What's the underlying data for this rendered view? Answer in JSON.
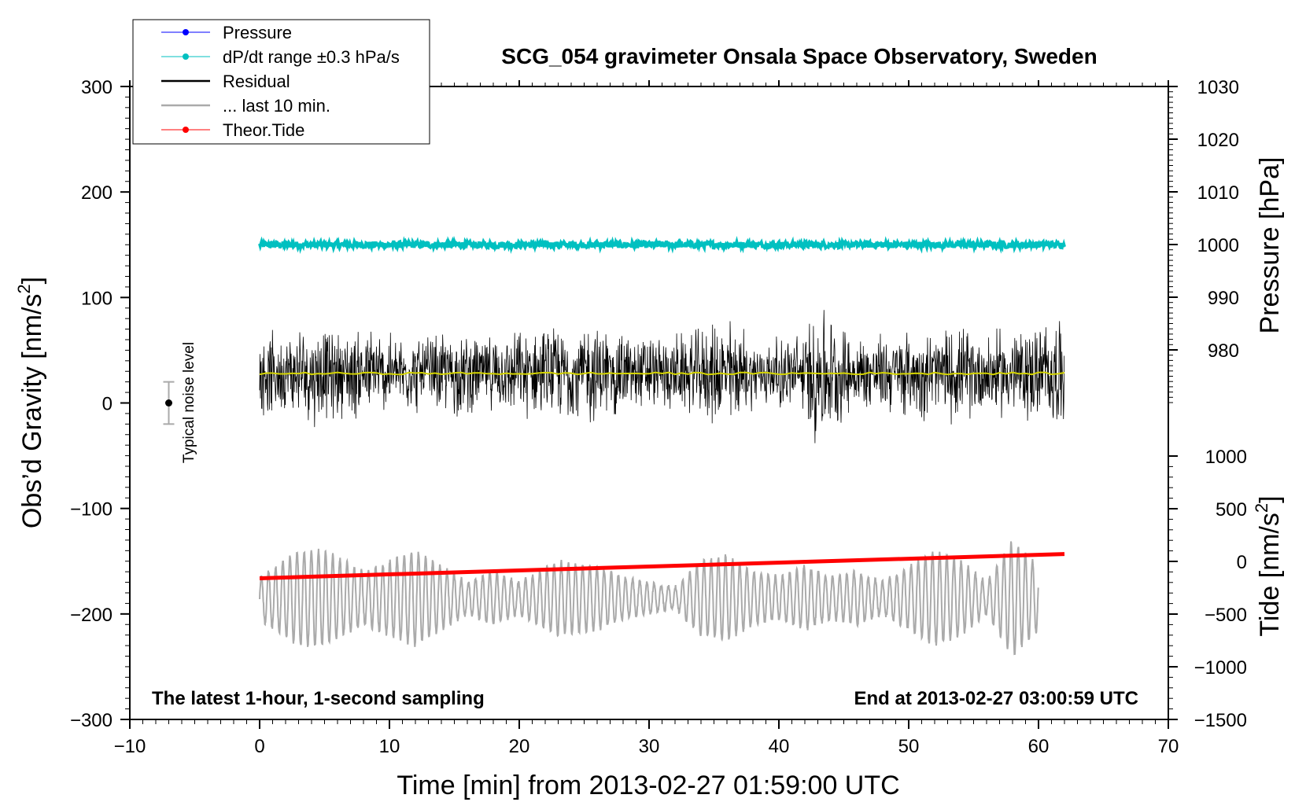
{
  "chart_data": {
    "type": "line",
    "title": "SCG_054 gravimeter Onsala Space Observatory, Sweden",
    "xlabel": "Time [min] from 2013-02-27 01:59:00 UTC",
    "ylabel_left_main": "Obs’d Gravity [nm/s",
    "ylabel_left_sup": "2",
    "ylabel_left_close": "]",
    "ylabel_right_pressure": "Pressure [hPa]",
    "ylabel_right_tide_main": "Tide [nm/s",
    "ylabel_right_tide_sup": "2",
    "ylabel_right_tide_close": "]",
    "bottom_left_note": "The latest 1-hour, 1-second sampling",
    "bottom_right_note": "End at 2013-02-27 03:00:59 UTC",
    "noise_label": "Typical noise level",
    "noise_level": {
      "x": -7,
      "center": 0,
      "halfwidth": 20
    },
    "xlim": [
      -10,
      70
    ],
    "ylim_gravity": [
      -300,
      300
    ],
    "ylim_pressure": [
      970,
      1030
    ],
    "ylim_tide": [
      -1500,
      1500
    ],
    "x_ticks": [
      "−10",
      "0",
      "10",
      "20",
      "30",
      "40",
      "50",
      "60",
      "70"
    ],
    "x_tick_values": [
      -10,
      0,
      10,
      20,
      30,
      40,
      50,
      60,
      70
    ],
    "gravity_ticks": [
      "−300",
      "−200",
      "−100",
      "0",
      "100",
      "200",
      "300"
    ],
    "gravity_tick_values": [
      -300,
      -200,
      -100,
      0,
      100,
      200,
      300
    ],
    "pressure_ticks": [
      "980",
      "990",
      "1000",
      "1010",
      "1020",
      "1030"
    ],
    "pressure_tick_values": [
      980,
      990,
      1000,
      1010,
      1020,
      1030
    ],
    "tide_ticks": [
      "−1500",
      "−1000",
      "−500",
      "0",
      "500",
      "1000"
    ],
    "tide_tick_values": [
      -1500,
      -1000,
      -500,
      0,
      500,
      1000
    ],
    "legend": [
      {
        "label": "Pressure",
        "color": "#0000ff",
        "style": "line-dot"
      },
      {
        "label": "dP/dt range ±0.3 hPa/s",
        "color": "#00c0c0",
        "style": "line-dot"
      },
      {
        "label": "Residual",
        "color": "#000000",
        "style": "line"
      },
      {
        "label": "... last 10 min.",
        "color": "#aaaaaa",
        "style": "line"
      },
      {
        "label": "Theor.Tide",
        "color": "#ff0000",
        "style": "line-dot"
      }
    ],
    "series": [
      {
        "name": "dP/dt range ±0.3 hPa/s",
        "axis": "gravity",
        "color": "#00c0c0",
        "x_start": 0,
        "x_end": 62,
        "center": 150,
        "spread": 3
      },
      {
        "name": "Residual",
        "axis": "gravity",
        "color": "#000000",
        "x_start": 0,
        "x_end": 62,
        "center": 28,
        "envelope_x": [
          0,
          2,
          4,
          6,
          8,
          10,
          12,
          15,
          18,
          20,
          24,
          25,
          27,
          30,
          33,
          36,
          37,
          38,
          40,
          42,
          43,
          44,
          46,
          50,
          53,
          56,
          59,
          62
        ],
        "envelope_amp": [
          45,
          40,
          55,
          45,
          50,
          42,
          40,
          45,
          38,
          45,
          50,
          55,
          48,
          40,
          42,
          60,
          55,
          35,
          38,
          45,
          85,
          60,
          40,
          45,
          50,
          45,
          50,
          60
        ]
      },
      {
        "name": "Residual smoothed",
        "axis": "gravity",
        "color": "#d4d400",
        "x_start": 0,
        "x_end": 62,
        "value": 28
      },
      {
        "name": "... last 10 min.",
        "axis": "gravity",
        "color": "#aaaaaa",
        "x_start": 0,
        "x_end": 60,
        "center": -185,
        "envelope_x": [
          0,
          3,
          5,
          8,
          10,
          12,
          14,
          16,
          18,
          20,
          23,
          26,
          28,
          30,
          32,
          34,
          36,
          38,
          40,
          42,
          44,
          46,
          48,
          50,
          52,
          54,
          56,
          58,
          60
        ],
        "envelope_amp": [
          20,
          45,
          45,
          25,
          35,
          45,
          30,
          15,
          25,
          15,
          35,
          30,
          20,
          15,
          10,
          35,
          40,
          25,
          20,
          30,
          20,
          25,
          15,
          30,
          45,
          35,
          15,
          55,
          30
        ]
      },
      {
        "name": "Theor.Tide",
        "axis": "tide",
        "color": "#ff0000",
        "x": [
          0,
          62
        ],
        "y": [
          -160,
          70
        ]
      }
    ]
  }
}
